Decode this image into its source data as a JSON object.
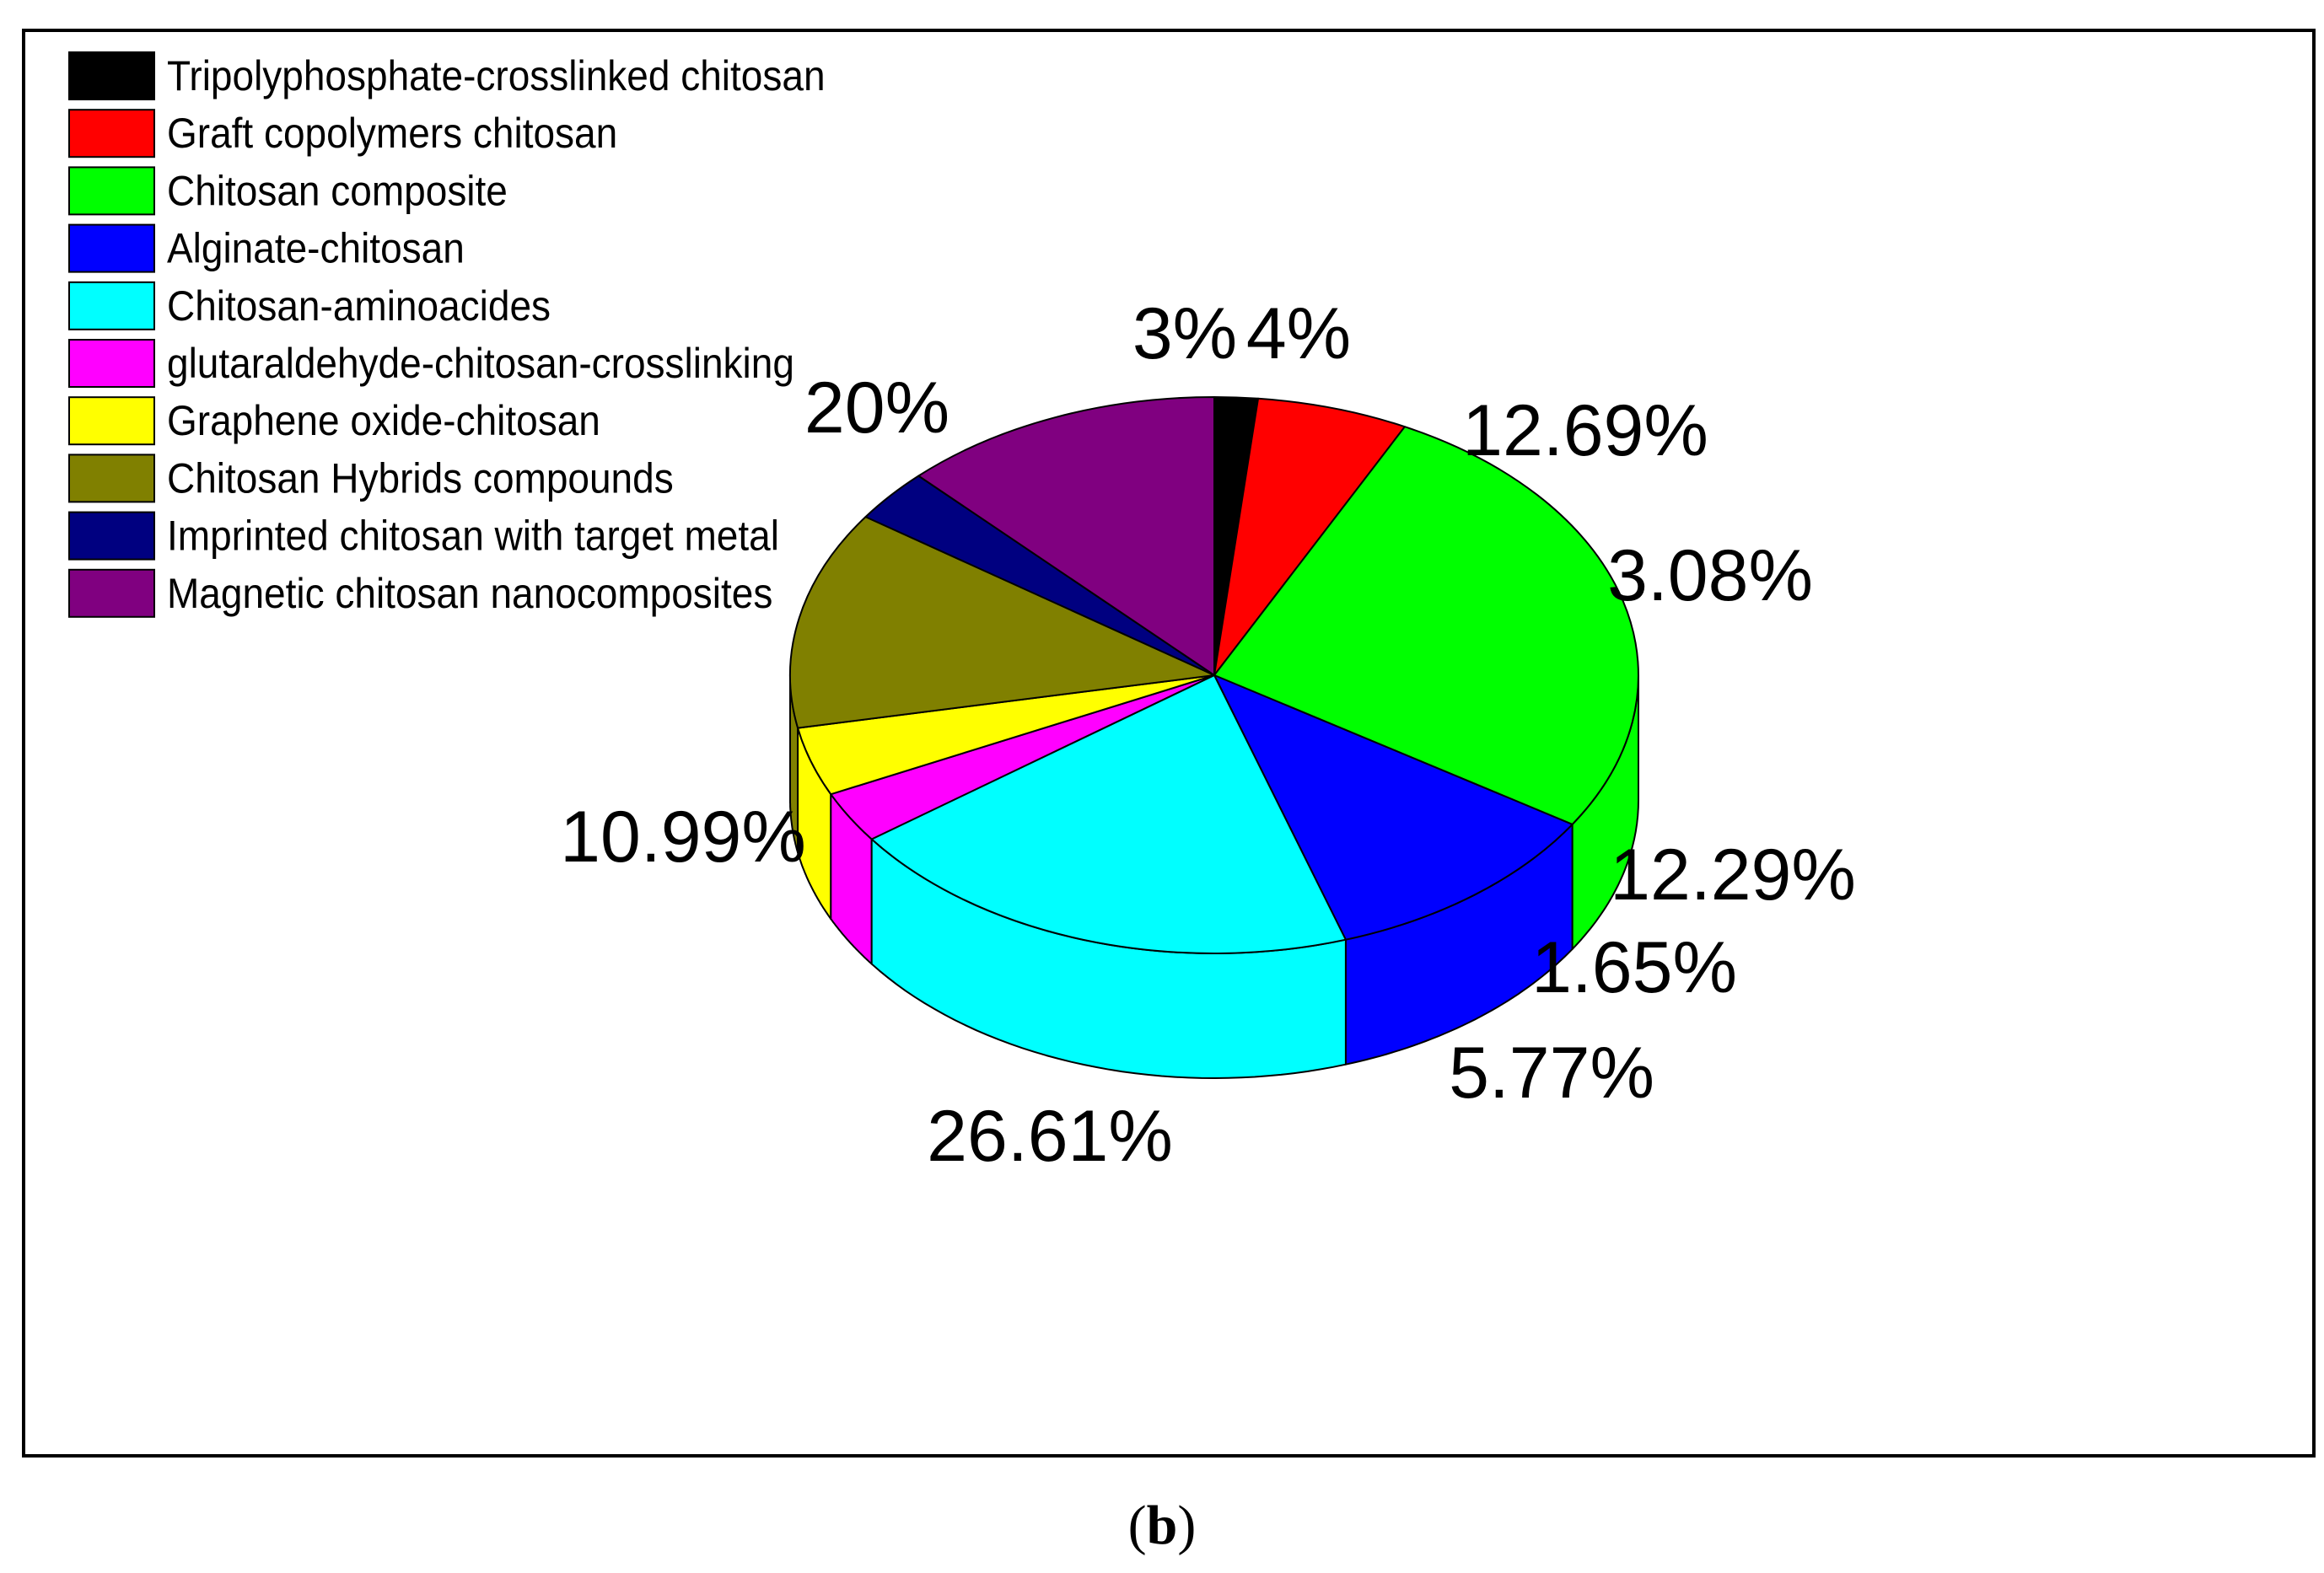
{
  "caption": {
    "open": "(",
    "letter": "b",
    "close": ")"
  },
  "chart_data": {
    "type": "pie",
    "three_d": true,
    "legend_position": "top-left",
    "slices": [
      {
        "name": "Tripolyphosphate-crosslinked chitosan",
        "label": "1.65%",
        "value": 1.65,
        "color": "#000000"
      },
      {
        "name": "Graft copolymers  chitosan",
        "label": "5.77%",
        "value": 5.77,
        "color": "#ff0000"
      },
      {
        "name": "Chitosan composite",
        "label": "26.61%",
        "value": 26.61,
        "color": "#00ff00"
      },
      {
        "name": "Alginate-chitosan",
        "label": "10.99%",
        "value": 10.99,
        "color": "#0000ff"
      },
      {
        "name": "Chitosan-aminoacides",
        "label": "20%",
        "value": 20,
        "color": "#00ffff"
      },
      {
        "name": "glutaraldehyde-chitosan-crosslinking",
        "label": "3%",
        "value": 3,
        "color": "#ff00ff"
      },
      {
        "name": "Graphene oxide-chitosan",
        "label": "4%",
        "value": 4,
        "color": "#ffff00"
      },
      {
        "name": "Chitosan  Hybrids compounds",
        "label": "12.69%",
        "value": 12.69,
        "color": "#808000"
      },
      {
        "name": "Imprinted chitosan with target metal",
        "label": "3.08%",
        "value": 3.08,
        "color": "#000080"
      },
      {
        "name": "Magnetic chitosan nanocomposites",
        "label": "12.29%",
        "value": 12.29,
        "color": "#800080"
      }
    ]
  }
}
